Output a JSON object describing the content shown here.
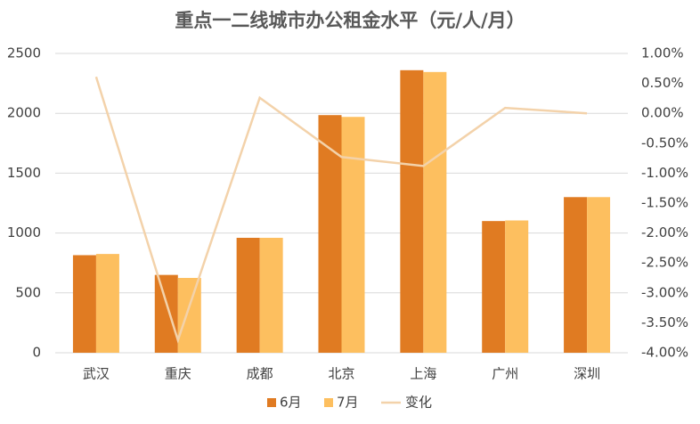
{
  "chart_data": {
    "type": "bar",
    "title": "重点一二线城市办公租金水平（元/人/月）",
    "categories": [
      "武汉",
      "重庆",
      "成都",
      "北京",
      "上海",
      "广州",
      "深圳"
    ],
    "series": [
      {
        "name": "6月",
        "color": "#e07b22",
        "type": "bar",
        "values": [
          815,
          650,
          960,
          1985,
          2360,
          1100,
          1300
        ]
      },
      {
        "name": "7月",
        "color": "#fdbf5f",
        "type": "bar",
        "values": [
          825,
          625,
          960,
          1970,
          2345,
          1105,
          1300
        ]
      },
      {
        "name": "变化",
        "color": "#f3d2aa",
        "type": "line",
        "axis": "y2",
        "values": [
          0.61,
          -3.79,
          0.26,
          -0.73,
          -0.88,
          0.09,
          0.0
        ]
      }
    ],
    "ylim": [
      0,
      2500
    ],
    "yticks": [
      0,
      500,
      1000,
      1500,
      2000,
      2500
    ],
    "y2lim": [
      -4,
      1
    ],
    "y2ticks": [
      {
        "value": 1,
        "label": "1.00%"
      },
      {
        "value": 0.5,
        "label": "0.50%"
      },
      {
        "value": 0,
        "label": "0.00%"
      },
      {
        "value": -0.5,
        "label": "-0.50%"
      },
      {
        "value": -1,
        "label": "-1.00%"
      },
      {
        "value": -1.5,
        "label": "-1.50%"
      },
      {
        "value": -2,
        "label": "-2.00%"
      },
      {
        "value": -2.5,
        "label": "-2.50%"
      },
      {
        "value": -3,
        "label": "-3.00%"
      },
      {
        "value": -3.5,
        "label": "-3.50%"
      },
      {
        "value": -4,
        "label": "-4.00%"
      }
    ],
    "grid": true,
    "legend": "bottom"
  }
}
